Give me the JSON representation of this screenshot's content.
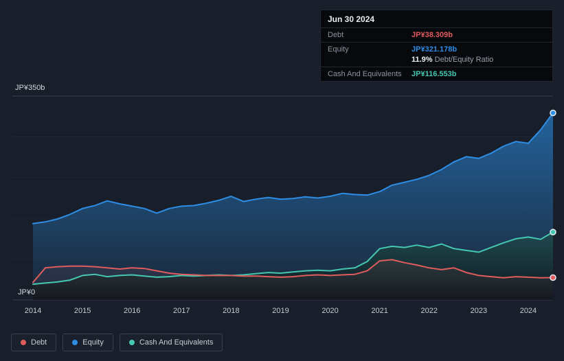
{
  "colors": {
    "background": "#181f2a",
    "tooltip_bg": "#07090d",
    "grid_major": "#39414f",
    "grid_minor": "#202734",
    "debt": "#e15c5c",
    "equity": "#2e8de5",
    "cash": "#45c8b2"
  },
  "tooltip": {
    "date": "Jun 30 2024",
    "rows": [
      {
        "label": "Debt",
        "value": "JP¥38.309b",
        "color_key": "debt"
      },
      {
        "label": "Equity",
        "value": "JP¥321.178b",
        "color_key": "equity",
        "sub_bold": "11.9%",
        "sub_text": "Debt/Equity Ratio"
      },
      {
        "label": "Cash And Equivalents",
        "value": "JP¥116.553b",
        "color_key": "cash"
      }
    ]
  },
  "axis": {
    "y_top_label": "JP¥350b",
    "y_bottom_label": "JP¥0",
    "x_labels": [
      "2014",
      "2015",
      "2016",
      "2017",
      "2018",
      "2019",
      "2020",
      "2021",
      "2022",
      "2023",
      "2024"
    ]
  },
  "legend": [
    {
      "label": "Debt",
      "color_key": "debt"
    },
    {
      "label": "Equity",
      "color_key": "equity"
    },
    {
      "label": "Cash And Equivalents",
      "color_key": "cash"
    }
  ],
  "chart_data": {
    "type": "area",
    "title": "Debt to Equity History (JP¥ billions)",
    "xlabel": "",
    "ylabel": "JP¥ billions",
    "ylim": [
      0,
      350
    ],
    "grid_values": [
      0,
      70,
      140,
      210,
      280,
      350
    ],
    "x_ticks": [
      2014,
      2015,
      2016,
      2017,
      2018,
      2019,
      2020,
      2021,
      2022,
      2023,
      2024
    ],
    "legend_position": "bottom-left",
    "x": [
      2014,
      2014.25,
      2014.5,
      2014.75,
      2015,
      2015.25,
      2015.5,
      2015.75,
      2016,
      2016.25,
      2016.5,
      2016.75,
      2017,
      2017.25,
      2017.5,
      2017.75,
      2018,
      2018.25,
      2018.5,
      2018.75,
      2019,
      2019.25,
      2019.5,
      2019.75,
      2020,
      2020.25,
      2020.5,
      2020.75,
      2021,
      2021.25,
      2021.5,
      2021.75,
      2022,
      2022.25,
      2022.5,
      2022.75,
      2023,
      2023.25,
      2023.5,
      2023.75,
      2024,
      2024.25,
      2024.5
    ],
    "series": [
      {
        "name": "Equity",
        "key": "equity",
        "fill": [
          "rgba(41,132,213,0.72)",
          "rgba(41,132,213,0.08)"
        ],
        "values": [
          131,
          134,
          139,
          147,
          157,
          162,
          170,
          165,
          161,
          157,
          149,
          157,
          161,
          162,
          166,
          171,
          178,
          169,
          173,
          176,
          173,
          174,
          177,
          175,
          178,
          183,
          181,
          180,
          186,
          197,
          202,
          207,
          214,
          224,
          237,
          246,
          243,
          252,
          264,
          272,
          269,
          292,
          321.178
        ]
      },
      {
        "name": "Cash And Equivalents",
        "key": "cash",
        "fill": [
          "rgba(67,198,176,0.42)",
          "rgba(13,19,26,0.92)"
        ],
        "values": [
          27,
          29,
          31,
          34,
          42,
          44,
          40,
          42,
          43,
          41,
          39,
          40,
          42,
          41,
          42,
          43,
          42,
          43,
          45,
          47,
          46,
          48,
          50,
          51,
          50,
          53,
          55,
          66,
          88,
          92,
          90,
          94,
          90,
          96,
          88,
          85,
          82,
          90,
          98,
          105,
          108,
          104,
          116.553
        ]
      },
      {
        "name": "Debt",
        "key": "debt",
        "fill": [
          "rgba(225,92,92,0.30)",
          "rgba(225,92,92,0.04)"
        ],
        "values": [
          30,
          55,
          57,
          58,
          58,
          57,
          55,
          53,
          55,
          54,
          50,
          46,
          44,
          43,
          42,
          42,
          42,
          41,
          41,
          40,
          39,
          40,
          42,
          43,
          42,
          43,
          44,
          50,
          67,
          69,
          64,
          60,
          55,
          52,
          55,
          47,
          42,
          40,
          38,
          40,
          39,
          38,
          38.309
        ]
      }
    ]
  }
}
